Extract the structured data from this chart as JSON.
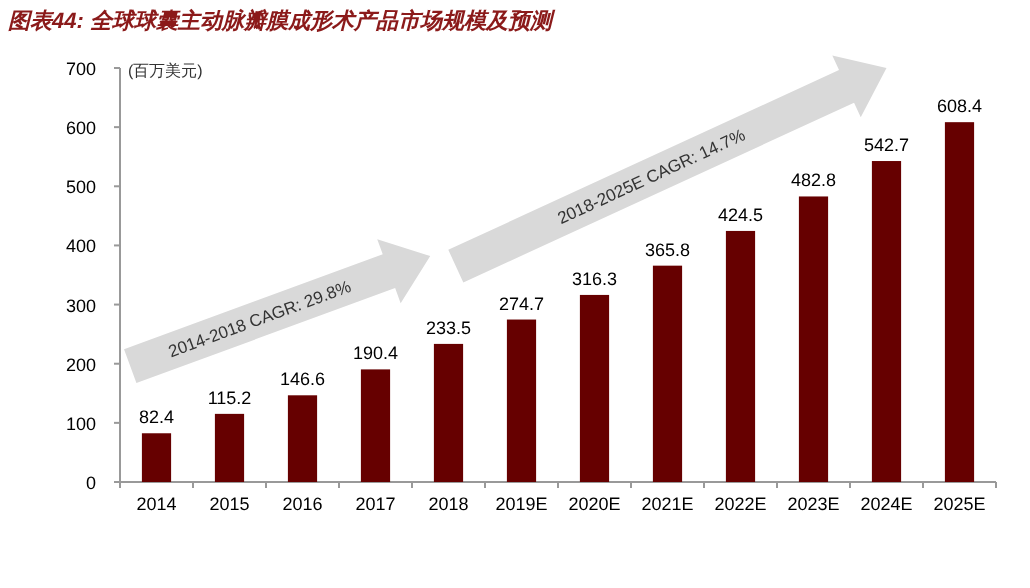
{
  "chart_data": {
    "type": "bar",
    "title": "图表44: 全球球囊主动脉瓣膜成形术产品市场规模及预测",
    "ylabel": "(百万美元)",
    "categories": [
      "2014",
      "2015",
      "2016",
      "2017",
      "2018",
      "2019E",
      "2020E",
      "2021E",
      "2022E",
      "2023E",
      "2024E",
      "2025E"
    ],
    "values": [
      82.4,
      115.2,
      146.6,
      190.4,
      233.5,
      274.7,
      316.3,
      365.8,
      424.5,
      482.8,
      542.7,
      608.4
    ],
    "color": "#660000",
    "ylim": [
      0,
      700
    ],
    "yticks": [
      0,
      100,
      200,
      300,
      400,
      500,
      600,
      700
    ],
    "data_labels": true,
    "annotations": [
      "2014-2018 CAGR: 29.8%",
      "2018-2025E CAGR: 14.7%"
    ]
  }
}
